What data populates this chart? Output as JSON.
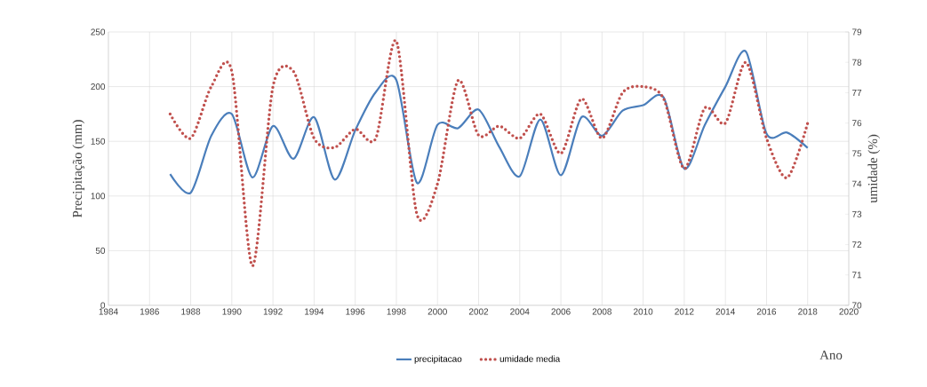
{
  "chart_data": {
    "type": "line",
    "xlabel": "Ano",
    "ylabel": "Precipitação (mm)",
    "y2label": "umidade (%)",
    "x": [
      1987,
      1988,
      1989,
      1990,
      1991,
      1992,
      1993,
      1994,
      1995,
      1996,
      1997,
      1998,
      1999,
      2000,
      2001,
      2002,
      2003,
      2004,
      2005,
      2006,
      2007,
      2008,
      2009,
      2010,
      2011,
      2012,
      2013,
      2014,
      2015,
      2016,
      2017,
      2018
    ],
    "series": [
      {
        "name": "precipitacao",
        "color": "#4a7ebb",
        "line_style": "solid",
        "values": [
          120,
          103,
          155,
          175,
          117,
          164,
          134,
          172,
          115,
          160,
          195,
          206,
          112,
          165,
          162,
          179,
          145,
          118,
          170,
          119,
          172,
          155,
          178,
          183,
          190,
          125,
          165,
          200,
          232,
          157,
          158,
          144
        ]
      },
      {
        "name": "umidade media",
        "color": "#c0504d",
        "line_style": "dotted",
        "axis": "y2",
        "values": [
          76.3,
          75.5,
          77.2,
          77.7,
          71.3,
          77.2,
          77.7,
          75.5,
          75.2,
          75.8,
          75.5,
          78.7,
          73.0,
          74.0,
          77.4,
          75.6,
          75.9,
          75.5,
          76.3,
          75.0,
          76.8,
          75.5,
          77.0,
          77.2,
          76.8,
          74.5,
          76.5,
          76.0,
          78.0,
          75.5,
          74.2,
          76.0
        ]
      }
    ],
    "xlim": [
      1984,
      2020
    ],
    "xticks": [
      1984,
      1986,
      1988,
      1990,
      1992,
      1994,
      1996,
      1998,
      2000,
      2002,
      2004,
      2006,
      2008,
      2010,
      2012,
      2014,
      2016,
      2018,
      2020
    ],
    "ylim": [
      0,
      250
    ],
    "yticks": [
      0,
      50,
      100,
      150,
      200,
      250
    ],
    "y2lim": [
      70,
      79
    ],
    "y2ticks": [
      70,
      71,
      72,
      73,
      74,
      75,
      76,
      77,
      78,
      79
    ],
    "grid": true,
    "legend": "bottom",
    "marker": "none"
  }
}
